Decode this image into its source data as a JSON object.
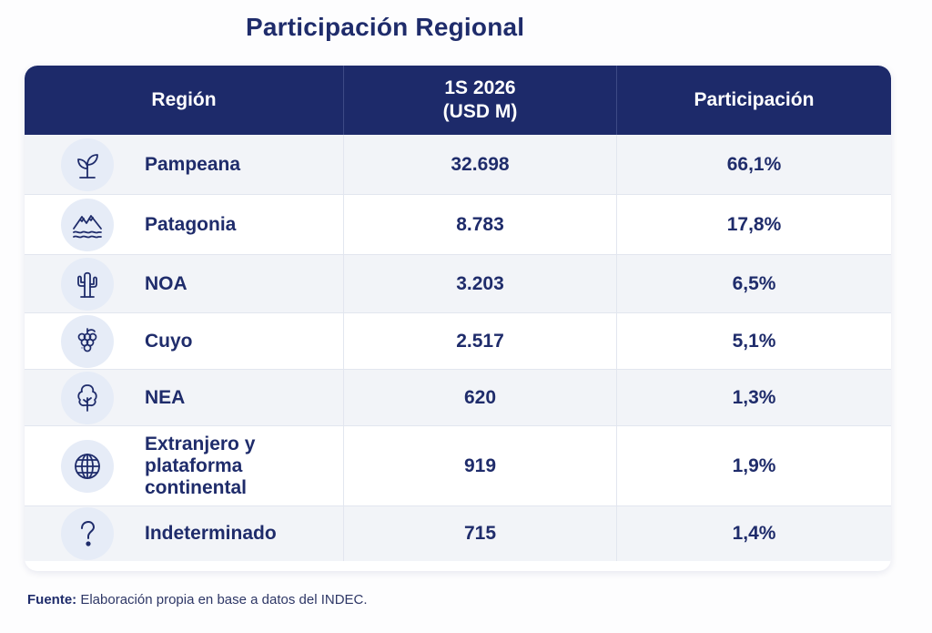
{
  "title": "Participación Regional",
  "table": {
    "headers": {
      "region": "Región",
      "value": "1S 2026\n(USD M)",
      "share": "Participación"
    },
    "rows": [
      {
        "icon": "plant-icon",
        "region": "Pampeana",
        "value": "32.698",
        "share": "66,1%"
      },
      {
        "icon": "mountains-icon",
        "region": "Patagonia",
        "value": "8.783",
        "share": "17,8%"
      },
      {
        "icon": "cactus-icon",
        "region": "NOA",
        "value": "3.203",
        "share": "6,5%"
      },
      {
        "icon": "grapes-icon",
        "region": "Cuyo",
        "value": "2.517",
        "share": "5,1%"
      },
      {
        "icon": "tree-icon",
        "region": "NEA",
        "value": "620",
        "share": "1,3%"
      },
      {
        "icon": "globe-icon",
        "region": "Extranjero y\nplataforma\ncontinental",
        "value": "919",
        "share": "1,9%"
      },
      {
        "icon": "question-icon",
        "region": "Indeterminado",
        "value": "715",
        "share": "1,4%"
      }
    ]
  },
  "source": {
    "label": "Fuente:",
    "text": "Elaboración propia en base a datos del INDEC."
  },
  "colors": {
    "header_bg": "#1d2a6a",
    "text": "#1f2c6b",
    "icon_bg": "#e6ecf7",
    "row_alt": "#f2f4f8"
  }
}
